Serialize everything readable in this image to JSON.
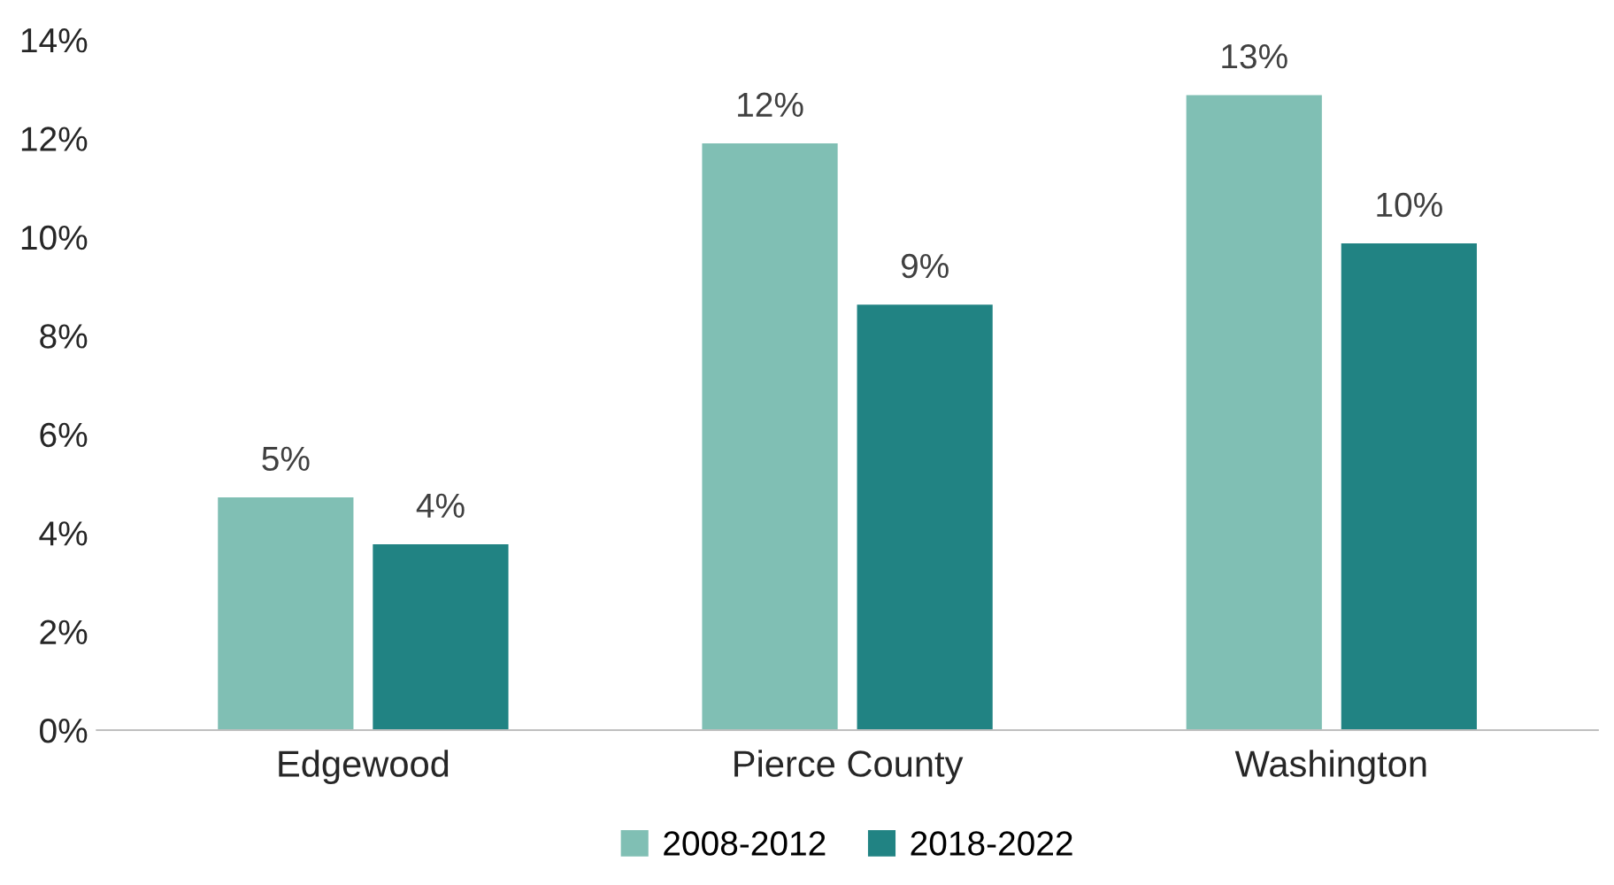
{
  "chart_data": {
    "type": "bar",
    "categories": [
      "Edgewood",
      "Pierce County",
      "Washington"
    ],
    "series": [
      {
        "name": "2008-2012",
        "color": "#80bfb4",
        "values": [
          4.72,
          11.9,
          12.88
        ],
        "value_labels": [
          "5%",
          "12%",
          "13%"
        ]
      },
      {
        "name": "2018-2022",
        "color": "#218383",
        "values": [
          3.77,
          8.63,
          9.87
        ],
        "value_labels": [
          "4%",
          "9%",
          "10%"
        ]
      }
    ],
    "ylim": [
      0,
      14
    ],
    "yticks": [
      {
        "value": 0,
        "label": "0%"
      },
      {
        "value": 2,
        "label": "2%"
      },
      {
        "value": 4,
        "label": "4%"
      },
      {
        "value": 6,
        "label": "6%"
      },
      {
        "value": 8,
        "label": "8%"
      },
      {
        "value": 10,
        "label": "10%"
      },
      {
        "value": 12,
        "label": "12%"
      },
      {
        "value": 14,
        "label": "14%"
      }
    ],
    "grid": false,
    "legend": "bottom"
  }
}
